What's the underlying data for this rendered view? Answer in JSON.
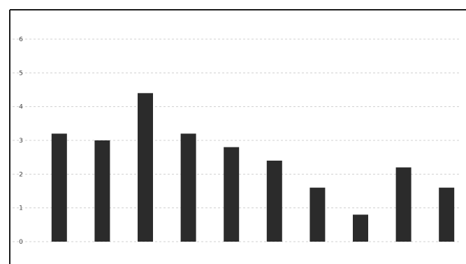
{
  "chart_data": {
    "type": "bar",
    "title": "",
    "xlabel": "",
    "ylabel": "",
    "ylim": [
      0,
      6
    ],
    "grid": true,
    "yticks": [
      0,
      1,
      2,
      3,
      4,
      5,
      6
    ],
    "categories": [
      [
        "",
        ""
      ],
      [
        "",
        ""
      ],
      [
        "",
        ""
      ],
      [
        "",
        ""
      ],
      [
        "",
        ""
      ],
      [
        "",
        ""
      ],
      [
        "",
        ""
      ],
      [
        "",
        ""
      ],
      [
        "",
        ""
      ],
      [
        "",
        ""
      ]
    ],
    "values": [
      3.2,
      3.0,
      4.4,
      3.2,
      2.8,
      2.4,
      1.6,
      0.8,
      2.2,
      1.6
    ],
    "colors": {
      "bar": "#2b2b2b",
      "frame": "#1a1a1a",
      "grid": "#d0d0d0"
    }
  }
}
